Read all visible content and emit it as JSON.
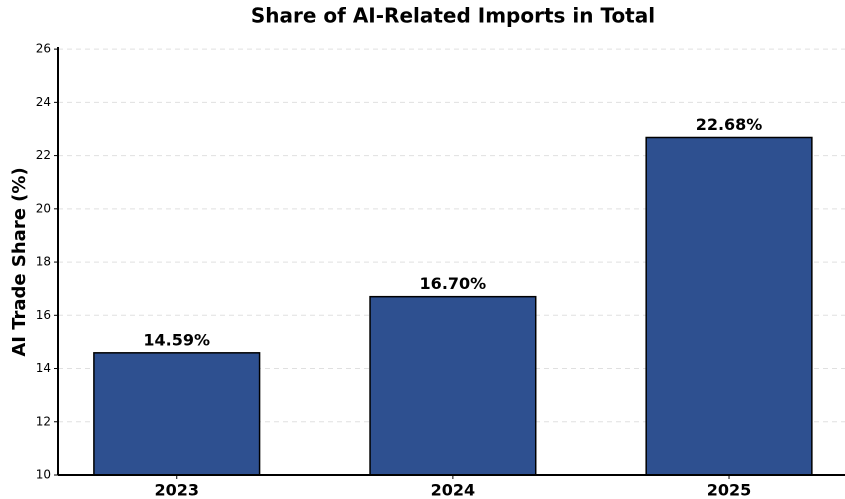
{
  "chart_data": {
    "type": "bar",
    "title": "Share of AI-Related Imports in Total",
    "ylabel": "AI Trade Share (%)",
    "categories": [
      "2023",
      "2024",
      "2025"
    ],
    "values": [
      14.59,
      16.7,
      22.68
    ],
    "value_labels": [
      "14.59%",
      "16.70%",
      "22.68%"
    ],
    "color": "#2e5090",
    "ylim": [
      10,
      26.08
    ],
    "yticks": [
      10,
      12,
      14,
      16,
      18,
      20,
      22,
      24,
      26
    ],
    "grid": true
  }
}
